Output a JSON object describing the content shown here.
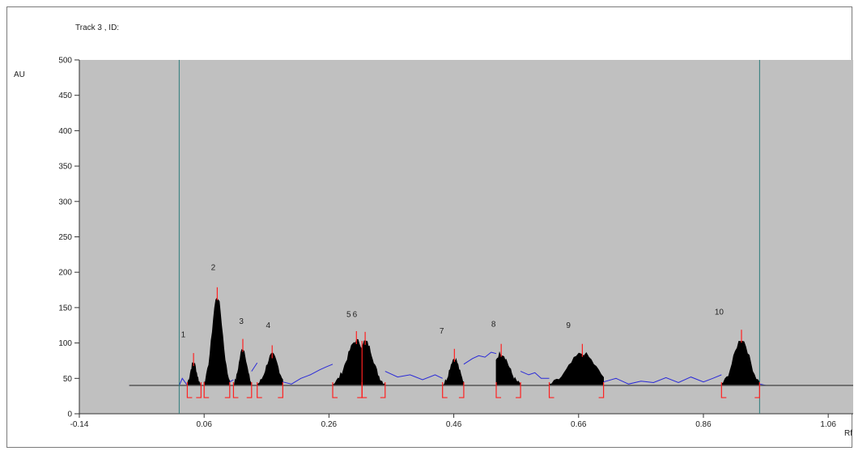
{
  "chart_data": {
    "type": "line",
    "title": "Track  3 , ID:",
    "xlabel": "Rf",
    "ylabel": "AU",
    "xlim": [
      -0.14,
      1.1
    ],
    "ylim": [
      0,
      500
    ],
    "x_ticks": [
      -0.14,
      0.06,
      0.26,
      0.46,
      0.66,
      0.86,
      1.06
    ],
    "x_tick_labels": [
      "-0.14",
      "0.06",
      "0.26",
      "0.46",
      "0.66",
      "0.86",
      "1.06"
    ],
    "y_ticks": [
      0,
      50,
      100,
      150,
      200,
      250,
      300,
      350,
      400,
      450,
      500
    ],
    "y_tick_labels": [
      "0",
      "50",
      "100",
      "150",
      "200",
      "250",
      "300",
      "350",
      "400",
      "450",
      "500"
    ],
    "baseline": 40,
    "start_line": 0.02,
    "front_line": 0.95,
    "colors": {
      "plot_background": "#c0c0c0",
      "trace": "#2828d8",
      "peak_fill": "#000000",
      "peak_marker": "#ff2020",
      "baseline": "#555555",
      "solvent_lines": "#2a7a7a"
    },
    "peaks": [
      {
        "label": "1",
        "start": 0.033,
        "max": 0.043,
        "end": 0.055,
        "height": 72
      },
      {
        "label": "2",
        "start": 0.06,
        "max": 0.081,
        "end": 0.101,
        "height": 165
      },
      {
        "label": "3",
        "start": 0.107,
        "max": 0.122,
        "end": 0.136,
        "height": 92
      },
      {
        "label": "4",
        "start": 0.145,
        "max": 0.169,
        "end": 0.186,
        "height": 83
      },
      {
        "label": "5",
        "start": 0.266,
        "max": 0.304,
        "end": 0.313,
        "height": 103
      },
      {
        "label": "6",
        "start": 0.313,
        "max": 0.318,
        "end": 0.35,
        "height": 102
      },
      {
        "label": "7",
        "start": 0.442,
        "max": 0.461,
        "end": 0.476,
        "height": 78
      },
      {
        "label": "8",
        "start": 0.528,
        "max": 0.536,
        "end": 0.567,
        "height": 85
      },
      {
        "label": "9",
        "start": 0.613,
        "max": 0.666,
        "end": 0.7,
        "height": 85
      },
      {
        "label": "10",
        "start": 0.889,
        "max": 0.921,
        "end": 0.95,
        "height": 105
      }
    ],
    "trace_segments": [
      {
        "x": [
          -0.06,
          0.02,
          0.025,
          0.033
        ],
        "y": [
          40,
          40,
          50,
          40
        ]
      },
      {
        "x": [
          0.101,
          0.107
        ],
        "y": [
          45,
          48
        ]
      },
      {
        "x": [
          0.136,
          0.145
        ],
        "y": [
          60,
          72
        ]
      },
      {
        "x": [
          0.186,
          0.2,
          0.215,
          0.23,
          0.245,
          0.255,
          0.266
        ],
        "y": [
          45,
          42,
          50,
          55,
          62,
          66,
          70
        ]
      },
      {
        "x": [
          0.35,
          0.37,
          0.39,
          0.41,
          0.43,
          0.442
        ],
        "y": [
          60,
          52,
          55,
          48,
          55,
          50
        ]
      },
      {
        "x": [
          0.476,
          0.49,
          0.5,
          0.51,
          0.52,
          0.528
        ],
        "y": [
          70,
          78,
          82,
          80,
          87,
          85
        ]
      },
      {
        "x": [
          0.567,
          0.58,
          0.59,
          0.6,
          0.613
        ],
        "y": [
          60,
          55,
          58,
          50,
          50
        ]
      },
      {
        "x": [
          0.7,
          0.72,
          0.74,
          0.76,
          0.78,
          0.8,
          0.82,
          0.84,
          0.86,
          0.875,
          0.889
        ],
        "y": [
          45,
          50,
          42,
          46,
          44,
          51,
          44,
          52,
          45,
          50,
          55
        ]
      },
      {
        "x": [
          0.95,
          0.96,
          1.0
        ],
        "y": [
          42,
          40,
          40
        ]
      }
    ]
  }
}
